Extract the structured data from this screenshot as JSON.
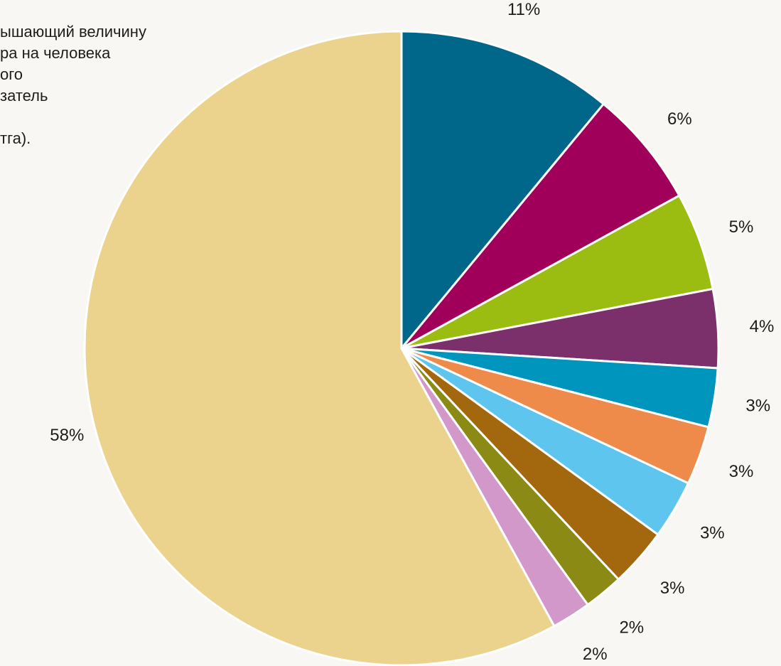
{
  "note_lines": [
    "ышающий величину",
    "ра на человека",
    "ого",
    "затель",
    "",
    "тга)."
  ],
  "chart_data": {
    "type": "pie",
    "start_angle_deg": 0,
    "direction": "clockwise",
    "slices": [
      {
        "value": 11,
        "label": "11%",
        "color": "#00678a"
      },
      {
        "value": 6,
        "label": "6%",
        "color": "#a1005a"
      },
      {
        "value": 5,
        "label": "5%",
        "color": "#9bbd11"
      },
      {
        "value": 4,
        "label": "4%",
        "color": "#7b306c"
      },
      {
        "value": 3,
        "label": "3%",
        "color": "#0095bd"
      },
      {
        "value": 3,
        "label": "3%",
        "color": "#ee8a4a"
      },
      {
        "value": 3,
        "label": "3%",
        "color": "#5ec6ee"
      },
      {
        "value": 3,
        "label": "3%",
        "color": "#a3680d"
      },
      {
        "value": 2,
        "label": "2%",
        "color": "#8b8a14"
      },
      {
        "value": 2,
        "label": "2%",
        "color": "#d298ca"
      },
      {
        "value": 58,
        "label": "58%",
        "color": "#ebd38d"
      }
    ]
  }
}
